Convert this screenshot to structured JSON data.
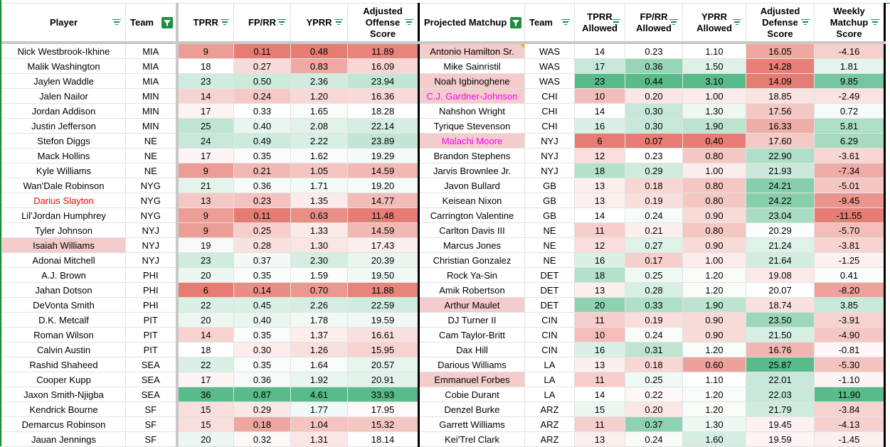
{
  "headers": {
    "left": [
      "Player",
      "Team",
      "TPRR",
      "FP/RR",
      "YPRR",
      "Adjusted Offense Score"
    ],
    "right": [
      "Projected Matchup",
      "Team",
      "TPRR Allowed",
      "FP/RR Allowed",
      "YPRR Allowed",
      "Adjusted Defense Score",
      "Weekly Matchup Score"
    ]
  },
  "rows": [
    {
      "player": "Nick Westbrook-Ikhine",
      "team": "MIA",
      "tprr": "9",
      "fprr": "0.11",
      "yprr": "0.48",
      "aos": "11.89",
      "opp": "Antonio Hamilton Sr.",
      "oteam": "WAS",
      "tprra": "14",
      "fprra": "0.23",
      "yprra": "1.10",
      "ads": "16.05",
      "wms": "-4.16",
      "opp_hl": true,
      "opp_note": true
    },
    {
      "player": "Malik Washington",
      "team": "MIA",
      "tprr": "18",
      "fprr": "0.27",
      "yprr": "0.83",
      "aos": "16.09",
      "opp": "Mike Sainristil",
      "oteam": "WAS",
      "tprra": "17",
      "fprra": "0.36",
      "yprra": "1.50",
      "ads": "14.28",
      "wms": "1.81"
    },
    {
      "player": "Jaylen Waddle",
      "team": "MIA",
      "tprr": "23",
      "fprr": "0.50",
      "yprr": "2.36",
      "aos": "23.94",
      "opp": "Noah Igbinoghene",
      "oteam": "WAS",
      "tprra": "23",
      "fprra": "0.44",
      "yprra": "3.10",
      "ads": "14.09",
      "wms": "9.85",
      "opp_hl": true
    },
    {
      "player": "Jalen Nailor",
      "team": "MIN",
      "tprr": "14",
      "fprr": "0.24",
      "yprr": "1.20",
      "aos": "16.36",
      "opp": "C.J. Gardner-Johnson",
      "oteam": "CHI",
      "tprra": "10",
      "fprra": "0.20",
      "yprra": "1.00",
      "ads": "18.85",
      "wms": "-2.49",
      "opp_hl": true,
      "opp_color": "mag"
    },
    {
      "player": "Jordan Addison",
      "team": "MIN",
      "tprr": "17",
      "fprr": "0.33",
      "yprr": "1.65",
      "aos": "18.28",
      "opp": "Nahshon Wright",
      "oteam": "CHI",
      "tprra": "14",
      "fprra": "0.30",
      "yprra": "1.30",
      "ads": "17.56",
      "wms": "0.72"
    },
    {
      "player": "Justin Jefferson",
      "team": "MIN",
      "tprr": "25",
      "fprr": "0.40",
      "yprr": "2.08",
      "aos": "22.14",
      "opp": "Tyrique Stevenson",
      "oteam": "CHI",
      "tprra": "16",
      "fprra": "0.30",
      "yprra": "1.90",
      "ads": "16.33",
      "wms": "5.81"
    },
    {
      "player": "Stefon Diggs",
      "team": "NE",
      "tprr": "24",
      "fprr": "0.49",
      "yprr": "2.22",
      "aos": "23.89",
      "opp": "Malachi Moore",
      "oteam": "NYJ",
      "tprra": "6",
      "fprra": "0.07",
      "yprra": "0.40",
      "ads": "17.60",
      "wms": "6.29",
      "opp_hl": true,
      "opp_color": "mag"
    },
    {
      "player": "Mack Hollins",
      "team": "NE",
      "tprr": "17",
      "fprr": "0.35",
      "yprr": "1.62",
      "aos": "19.29",
      "opp": "Brandon Stephens",
      "oteam": "NYJ",
      "tprra": "12",
      "fprra": "0.23",
      "yprra": "0.80",
      "ads": "22.90",
      "wms": "-3.61"
    },
    {
      "player": "Kyle Williams",
      "team": "NE",
      "tprr": "9",
      "fprr": "0.21",
      "yprr": "1.05",
      "aos": "14.59",
      "opp": "Jarvis Brownlee Jr.",
      "oteam": "NYJ",
      "tprra": "18",
      "fprra": "0.29",
      "yprra": "1.00",
      "ads": "21.93",
      "wms": "-7.34"
    },
    {
      "player": "Wan'Dale Robinson",
      "team": "NYG",
      "tprr": "21",
      "fprr": "0.36",
      "yprr": "1.71",
      "aos": "19.20",
      "opp": "Javon Bullard",
      "oteam": "GB",
      "tprra": "13",
      "fprra": "0.18",
      "yprra": "0.80",
      "ads": "24.21",
      "wms": "-5.01"
    },
    {
      "player": "Darius Slayton",
      "team": "NYG",
      "tprr": "13",
      "fprr": "0.23",
      "yprr": "1.35",
      "aos": "14.77",
      "opp": "Keisean Nixon",
      "oteam": "GB",
      "tprra": "13",
      "fprra": "0.19",
      "yprra": "0.80",
      "ads": "24.22",
      "wms": "-9.45",
      "player_color": "red"
    },
    {
      "player": "Lil'Jordan Humphrey",
      "team": "NYG",
      "tprr": "9",
      "fprr": "0.11",
      "yprr": "0.63",
      "aos": "11.48",
      "opp": "Carrington Valentine",
      "oteam": "GB",
      "tprra": "14",
      "fprra": "0.24",
      "yprra": "0.90",
      "ads": "23.04",
      "wms": "-11.55"
    },
    {
      "player": "Tyler Johnson",
      "team": "NYJ",
      "tprr": "9",
      "fprr": "0.25",
      "yprr": "1.33",
      "aos": "14.59",
      "opp": "Carlton Davis III",
      "oteam": "NE",
      "tprra": "11",
      "fprra": "0.21",
      "yprra": "0.80",
      "ads": "20.29",
      "wms": "-5.70"
    },
    {
      "player": "Isaiah Williams",
      "team": "NYJ",
      "tprr": "19",
      "fprr": "0.28",
      "yprr": "1.30",
      "aos": "17.43",
      "opp": "Marcus Jones",
      "oteam": "NE",
      "tprra": "12",
      "fprra": "0.27",
      "yprra": "0.90",
      "ads": "21.24",
      "wms": "-3.81",
      "player_hl": true
    },
    {
      "player": "Adonai Mitchell",
      "team": "NYJ",
      "tprr": "23",
      "fprr": "0.37",
      "yprr": "2.30",
      "aos": "20.39",
      "opp": "Christian Gonzalez",
      "oteam": "NE",
      "tprra": "16",
      "fprra": "0.17",
      "yprra": "1.00",
      "ads": "21.64",
      "wms": "-1.25"
    },
    {
      "player": "A.J. Brown",
      "team": "PHI",
      "tprr": "20",
      "fprr": "0.35",
      "yprr": "1.59",
      "aos": "19.50",
      "opp": "Rock Ya-Sin",
      "oteam": "DET",
      "tprra": "18",
      "fprra": "0.25",
      "yprra": "1.20",
      "ads": "19.08",
      "wms": "0.41"
    },
    {
      "player": "Jahan Dotson",
      "team": "PHI",
      "tprr": "6",
      "fprr": "0.14",
      "yprr": "0.70",
      "aos": "11.88",
      "opp": "Amik Robertson",
      "oteam": "DET",
      "tprra": "13",
      "fprra": "0.28",
      "yprra": "1.20",
      "ads": "20.07",
      "wms": "-8.20"
    },
    {
      "player": "DeVonta Smith",
      "team": "PHI",
      "tprr": "22",
      "fprr": "0.45",
      "yprr": "2.26",
      "aos": "22.59",
      "opp": "Arthur Maulet",
      "oteam": "DET",
      "tprra": "20",
      "fprra": "0.33",
      "yprra": "1.90",
      "ads": "18.74",
      "wms": "3.85",
      "opp_hl": true
    },
    {
      "player": "D.K. Metcalf",
      "team": "PIT",
      "tprr": "20",
      "fprr": "0.40",
      "yprr": "1.78",
      "aos": "19.59",
      "opp": "DJ Turner II",
      "oteam": "CIN",
      "tprra": "11",
      "fprra": "0.19",
      "yprra": "0.90",
      "ads": "23.50",
      "wms": "-3.91"
    },
    {
      "player": "Roman Wilson",
      "team": "PIT",
      "tprr": "14",
      "fprr": "0.35",
      "yprr": "1.37",
      "aos": "16.61",
      "opp": "Cam Taylor-Britt",
      "oteam": "CIN",
      "tprra": "10",
      "fprra": "0.24",
      "yprra": "0.90",
      "ads": "21.50",
      "wms": "-4.90"
    },
    {
      "player": "Calvin Austin",
      "team": "PIT",
      "tprr": "18",
      "fprr": "0.30",
      "yprr": "1.26",
      "aos": "15.95",
      "opp": "Dax Hill",
      "oteam": "CIN",
      "tprra": "16",
      "fprra": "0.31",
      "yprra": "1.20",
      "ads": "16.76",
      "wms": "-0.81"
    },
    {
      "player": "Rashid Shaheed",
      "team": "SEA",
      "tprr": "22",
      "fprr": "0.35",
      "yprr": "1.64",
      "aos": "20.57",
      "opp": "Darious Williams",
      "oteam": "LA",
      "tprra": "13",
      "fprra": "0.18",
      "yprra": "0.60",
      "ads": "25.87",
      "wms": "-5.30"
    },
    {
      "player": "Cooper Kupp",
      "team": "SEA",
      "tprr": "17",
      "fprr": "0.36",
      "yprr": "1.92",
      "aos": "20.91",
      "opp": "Emmanuel Forbes",
      "oteam": "LA",
      "tprra": "11",
      "fprra": "0.25",
      "yprra": "1.10",
      "ads": "22.01",
      "wms": "-1.10",
      "opp_hl": true
    },
    {
      "player": "Jaxon Smith-Njigba",
      "team": "SEA",
      "tprr": "36",
      "fprr": "0.87",
      "yprr": "4.61",
      "aos": "33.93",
      "opp": "Cobie Durant",
      "oteam": "LA",
      "tprra": "14",
      "fprra": "0.22",
      "yprra": "1.20",
      "ads": "22.03",
      "wms": "11.90"
    },
    {
      "player": "Kendrick Bourne",
      "team": "SF",
      "tprr": "15",
      "fprr": "0.29",
      "yprr": "1.77",
      "aos": "17.95",
      "opp": "Denzel Burke",
      "oteam": "ARZ",
      "tprra": "15",
      "fprra": "0.20",
      "yprra": "1.20",
      "ads": "21.79",
      "wms": "-3.84"
    },
    {
      "player": "Demarcus Robinson",
      "team": "SF",
      "tprr": "15",
      "fprr": "0.18",
      "yprr": "1.04",
      "aos": "15.32",
      "opp": "Garrett Williams",
      "oteam": "ARZ",
      "tprra": "11",
      "fprra": "0.37",
      "yprra": "1.30",
      "ads": "19.45",
      "wms": "-4.13"
    },
    {
      "player": "Jauan Jennings",
      "team": "SF",
      "tprr": "20",
      "fprr": "0.32",
      "yprr": "1.31",
      "aos": "18.14",
      "opp": "Kei'Trel Clark",
      "oteam": "ARZ",
      "tprra": "13",
      "fprra": "0.24",
      "yprra": "1.60",
      "ads": "19.59",
      "wms": "-1.45"
    }
  ],
  "colors": {
    "low": "#e67c73",
    "mid": "#ffffff",
    "high": "#57bb8a",
    "filter": "#1e8e3e",
    "highlight": "#f4cccc"
  }
}
